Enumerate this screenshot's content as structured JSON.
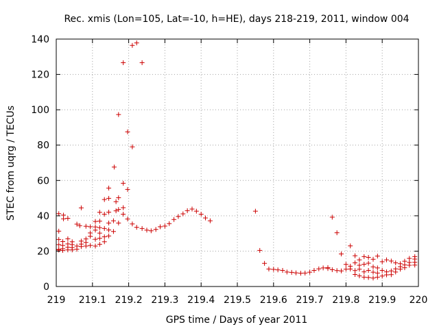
{
  "chart_data": {
    "type": "scatter",
    "title": "Rec. xmis (Lon=105, Lat=-10, h=HE), days 218-219, 2011, window 004",
    "xlabel": "GPS time / Days of year 2011",
    "ylabel": "STEC from uqrg / TECUs",
    "xlim": [
      219,
      220
    ],
    "ylim": [
      0,
      140
    ],
    "x_ticks": [
      "219",
      "219.1",
      "219.2",
      "219.3",
      "219.4",
      "219.5",
      "219.6",
      "219.7",
      "219.8",
      "219.9",
      "220"
    ],
    "y_ticks": [
      "0",
      "20",
      "40",
      "60",
      "80",
      "100",
      "120",
      "140"
    ],
    "grid": true,
    "marker": "+",
    "marker_color": "#cc0000",
    "points": [
      [
        219.007,
        41.2
      ],
      [
        219.007,
        31.3
      ],
      [
        219.007,
        26.6
      ],
      [
        219.007,
        23.7
      ],
      [
        219.007,
        21.0
      ],
      [
        219.007,
        20.6
      ],
      [
        219.018,
        20.4
      ],
      [
        219.018,
        21.4
      ],
      [
        219.018,
        23.2
      ],
      [
        219.018,
        25.4
      ],
      [
        219.02,
        38.3
      ],
      [
        219.02,
        40.4
      ],
      [
        219.032,
        38.6
      ],
      [
        219.032,
        27.0
      ],
      [
        219.032,
        24.1
      ],
      [
        219.032,
        22.2
      ],
      [
        219.032,
        20.7
      ],
      [
        219.044,
        20.7
      ],
      [
        219.044,
        22.0
      ],
      [
        219.044,
        23.7
      ],
      [
        219.044,
        25.3
      ],
      [
        219.057,
        21.1
      ],
      [
        219.057,
        22.9
      ],
      [
        219.057,
        35.3
      ],
      [
        219.065,
        34.4
      ],
      [
        219.069,
        44.5
      ],
      [
        219.069,
        25.7
      ],
      [
        219.069,
        24.0
      ],
      [
        219.069,
        22.6
      ],
      [
        219.082,
        22.9
      ],
      [
        219.082,
        24.9
      ],
      [
        219.082,
        26.9
      ],
      [
        219.082,
        34.1
      ],
      [
        219.094,
        33.8
      ],
      [
        219.094,
        30.3
      ],
      [
        219.094,
        28.4
      ],
      [
        219.094,
        23.2
      ],
      [
        219.108,
        22.9
      ],
      [
        219.108,
        26.7
      ],
      [
        219.108,
        31.9
      ],
      [
        219.108,
        33.7
      ],
      [
        219.108,
        36.8
      ],
      [
        219.12,
        42.0
      ],
      [
        219.12,
        37.0
      ],
      [
        219.12,
        33.3
      ],
      [
        219.12,
        30.2
      ],
      [
        219.12,
        27.3
      ],
      [
        219.12,
        23.9
      ],
      [
        219.133,
        25.3
      ],
      [
        219.133,
        28.1
      ],
      [
        219.133,
        32.8
      ],
      [
        219.133,
        40.9
      ],
      [
        219.133,
        49.2
      ],
      [
        219.145,
        49.9
      ],
      [
        219.145,
        55.7
      ],
      [
        219.145,
        42.1
      ],
      [
        219.145,
        35.9
      ],
      [
        219.145,
        32.0
      ],
      [
        219.145,
        28.6
      ],
      [
        219.158,
        37.2
      ],
      [
        219.158,
        31.1
      ],
      [
        219.16,
        67.6
      ],
      [
        219.165,
        42.8
      ],
      [
        219.165,
        48.0
      ],
      [
        219.172,
        97.3
      ],
      [
        219.172,
        50.2
      ],
      [
        219.172,
        43.6
      ],
      [
        219.172,
        35.9
      ],
      [
        219.185,
        126.6
      ],
      [
        219.185,
        58.4
      ],
      [
        219.185,
        44.6
      ],
      [
        219.185,
        40.9
      ],
      [
        219.197,
        87.5
      ],
      [
        219.197,
        54.9
      ],
      [
        219.197,
        38.2
      ],
      [
        219.21,
        136.4
      ],
      [
        219.21,
        79.0
      ],
      [
        219.21,
        35.4
      ],
      [
        219.222,
        137.8
      ],
      [
        219.222,
        33.5
      ],
      [
        219.237,
        126.6
      ],
      [
        219.237,
        32.8
      ],
      [
        219.25,
        31.9
      ],
      [
        219.262,
        31.5
      ],
      [
        219.275,
        32.3
      ],
      [
        219.287,
        33.8
      ],
      [
        219.3,
        34.2
      ],
      [
        219.312,
        35.6
      ],
      [
        219.325,
        37.9
      ],
      [
        219.337,
        39.6
      ],
      [
        219.35,
        41.1
      ],
      [
        219.362,
        42.9
      ],
      [
        219.375,
        43.8
      ],
      [
        219.387,
        42.6
      ],
      [
        219.4,
        40.9
      ],
      [
        219.412,
        38.8
      ],
      [
        219.425,
        37.2
      ],
      [
        219.55,
        42.6
      ],
      [
        219.562,
        20.4
      ],
      [
        219.575,
        13.1
      ],
      [
        219.587,
        9.9
      ],
      [
        219.6,
        9.7
      ],
      [
        219.612,
        9.4
      ],
      [
        219.625,
        9.1
      ],
      [
        219.637,
        8.2
      ],
      [
        219.65,
        8.0
      ],
      [
        219.662,
        7.7
      ],
      [
        219.675,
        7.5
      ],
      [
        219.687,
        7.6
      ],
      [
        219.7,
        8.1
      ],
      [
        219.712,
        9.1
      ],
      [
        219.725,
        10.0
      ],
      [
        219.737,
        10.5
      ],
      [
        219.75,
        10.2
      ],
      [
        219.762,
        39.2
      ],
      [
        219.775,
        30.4
      ],
      [
        219.787,
        18.4
      ],
      [
        219.75,
        10.7
      ],
      [
        219.762,
        9.5
      ],
      [
        219.775,
        9.0
      ],
      [
        219.787,
        8.8
      ],
      [
        219.8,
        9.8
      ],
      [
        219.8,
        12.5
      ],
      [
        219.812,
        23.0
      ],
      [
        219.812,
        11.5
      ],
      [
        219.812,
        9.9
      ],
      [
        219.825,
        17.4
      ],
      [
        219.825,
        13.4
      ],
      [
        219.825,
        9.0
      ],
      [
        219.825,
        6.8
      ],
      [
        219.837,
        15.1
      ],
      [
        219.837,
        12.0
      ],
      [
        219.837,
        9.8
      ],
      [
        219.837,
        6.0
      ],
      [
        219.85,
        16.9
      ],
      [
        219.85,
        12.6
      ],
      [
        219.85,
        8.3
      ],
      [
        219.85,
        5.3
      ],
      [
        219.862,
        16.5
      ],
      [
        219.862,
        13.2
      ],
      [
        219.862,
        9.1
      ],
      [
        219.862,
        5.1
      ],
      [
        219.875,
        15.4
      ],
      [
        219.875,
        11.1
      ],
      [
        219.875,
        8.1
      ],
      [
        219.875,
        4.8
      ],
      [
        219.887,
        17.2
      ],
      [
        219.887,
        10.5
      ],
      [
        219.887,
        7.6
      ],
      [
        219.887,
        5.3
      ],
      [
        219.9,
        14.0
      ],
      [
        219.9,
        9.1
      ],
      [
        219.9,
        5.9
      ],
      [
        219.912,
        15.1
      ],
      [
        219.912,
        8.3
      ],
      [
        219.912,
        6.6
      ],
      [
        219.925,
        14.4
      ],
      [
        219.925,
        8.8
      ],
      [
        219.925,
        6.7
      ],
      [
        219.937,
        13.4
      ],
      [
        219.937,
        10.0
      ],
      [
        219.937,
        8.2
      ],
      [
        219.95,
        12.9
      ],
      [
        219.95,
        11.2
      ],
      [
        219.95,
        9.8
      ],
      [
        219.962,
        14.3
      ],
      [
        219.962,
        12.2
      ],
      [
        219.962,
        10.6
      ],
      [
        219.975,
        15.9
      ],
      [
        219.975,
        13.6
      ],
      [
        219.975,
        12.0
      ],
      [
        219.99,
        16.9
      ],
      [
        219.99,
        15.5
      ],
      [
        219.99,
        13.7
      ],
      [
        219.99,
        12.1
      ]
    ]
  }
}
